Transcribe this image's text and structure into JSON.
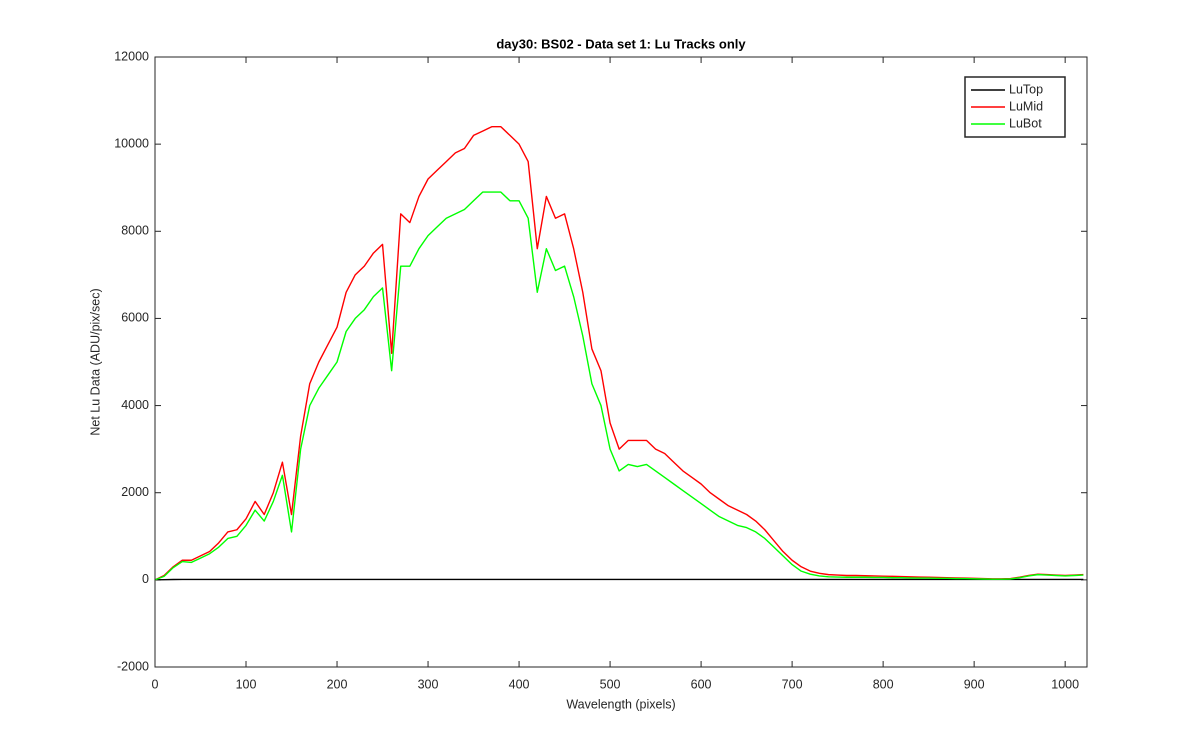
{
  "chart_data": {
    "type": "line",
    "title": "day30: BS02 - Data set 1: Lu Tracks only",
    "x_label": "Wavelength (pixels)",
    "y_label": "Net Lu Data (ADU/pix/sec)",
    "xlim": [
      0,
      1024
    ],
    "xticks": [
      0,
      100,
      200,
      300,
      400,
      500,
      600,
      700,
      800,
      900,
      1000
    ],
    "ylim": [
      -2000,
      12000
    ],
    "yticks": [
      -2000,
      0,
      2000,
      4000,
      6000,
      8000,
      10000,
      12000
    ],
    "legend": "northeast",
    "x": [
      0,
      10,
      20,
      30,
      40,
      50,
      60,
      70,
      80,
      90,
      100,
      110,
      120,
      130,
      140,
      150,
      160,
      170,
      180,
      190,
      200,
      210,
      220,
      230,
      240,
      250,
      260,
      270,
      280,
      290,
      300,
      310,
      320,
      330,
      340,
      350,
      360,
      370,
      380,
      390,
      400,
      410,
      420,
      430,
      440,
      450,
      460,
      470,
      480,
      490,
      500,
      510,
      520,
      530,
      540,
      550,
      560,
      570,
      580,
      590,
      600,
      610,
      620,
      630,
      640,
      650,
      660,
      670,
      680,
      690,
      700,
      710,
      720,
      730,
      740,
      750,
      760,
      770,
      780,
      790,
      800,
      810,
      820,
      830,
      840,
      850,
      860,
      870,
      880,
      890,
      900,
      910,
      920,
      930,
      940,
      950,
      960,
      970,
      980,
      990,
      1000,
      1010,
      1020
    ],
    "series": [
      {
        "name": "LuTop",
        "color": "#000000",
        "values": [
          0,
          5,
          8,
          10,
          10,
          10,
          10,
          10,
          10,
          10,
          10,
          10,
          10,
          10,
          10,
          10,
          10,
          10,
          10,
          10,
          10,
          10,
          10,
          10,
          10,
          10,
          10,
          10,
          10,
          10,
          10,
          10,
          10,
          10,
          10,
          10,
          10,
          10,
          10,
          10,
          10,
          10,
          10,
          10,
          10,
          10,
          10,
          10,
          10,
          10,
          10,
          10,
          10,
          10,
          10,
          10,
          10,
          10,
          10,
          10,
          10,
          10,
          10,
          10,
          10,
          10,
          10,
          10,
          10,
          10,
          10,
          10,
          10,
          10,
          10,
          10,
          10,
          10,
          10,
          10,
          10,
          10,
          10,
          10,
          10,
          10,
          10,
          10,
          10,
          10,
          10,
          10,
          10,
          10,
          10,
          10,
          10,
          10,
          10,
          10,
          10,
          10,
          10
        ]
      },
      {
        "name": "LuMid",
        "color": "#ff0000",
        "values": [
          0,
          100,
          300,
          450,
          450,
          550,
          650,
          850,
          1100,
          1150,
          1400,
          1800,
          1500,
          2000,
          2700,
          1500,
          3300,
          4500,
          5000,
          5400,
          5800,
          6600,
          7000,
          7200,
          7500,
          7700,
          5200,
          8400,
          8200,
          8800,
          9200,
          9400,
          9600,
          9800,
          9900,
          10200,
          10300,
          10400,
          10400,
          10200,
          10000,
          9600,
          7600,
          8800,
          8300,
          8400,
          7600,
          6600,
          5300,
          4800,
          3600,
          3000,
          3200,
          3200,
          3200,
          3000,
          2900,
          2700,
          2500,
          2350,
          2200,
          2000,
          1850,
          1700,
          1600,
          1500,
          1350,
          1150,
          900,
          650,
          450,
          300,
          200,
          150,
          120,
          110,
          100,
          100,
          95,
          90,
          85,
          80,
          75,
          70,
          65,
          60,
          55,
          50,
          45,
          40,
          35,
          30,
          25,
          25,
          30,
          60,
          100,
          130,
          120,
          110,
          100,
          110,
          120
        ]
      },
      {
        "name": "LuBot",
        "color": "#00ff00",
        "values": [
          0,
          80,
          280,
          420,
          400,
          500,
          600,
          750,
          950,
          1000,
          1250,
          1600,
          1350,
          1800,
          2400,
          1100,
          3000,
          4000,
          4400,
          4700,
          5000,
          5700,
          6000,
          6200,
          6500,
          6700,
          4800,
          7200,
          7200,
          7600,
          7900,
          8100,
          8300,
          8400,
          8500,
          8700,
          8900,
          8900,
          8900,
          8700,
          8700,
          8300,
          6600,
          7600,
          7100,
          7200,
          6500,
          5600,
          4500,
          4000,
          3000,
          2500,
          2650,
          2600,
          2650,
          2500,
          2350,
          2200,
          2050,
          1900,
          1750,
          1600,
          1450,
          1350,
          1250,
          1200,
          1100,
          950,
          750,
          550,
          350,
          200,
          130,
          90,
          70,
          65,
          60,
          60,
          60,
          55,
          55,
          50,
          50,
          45,
          40,
          40,
          35,
          35,
          30,
          30,
          25,
          20,
          15,
          15,
          20,
          50,
          90,
          120,
          110,
          100,
          90,
          100,
          110
        ]
      }
    ]
  }
}
